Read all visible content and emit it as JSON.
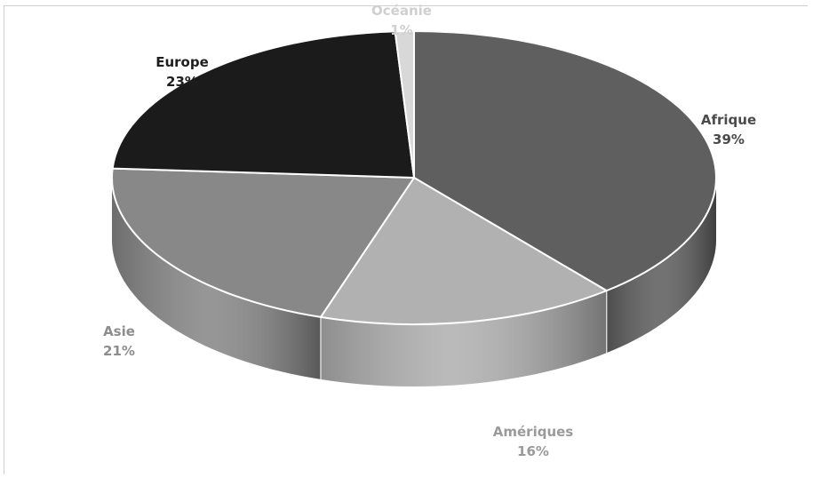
{
  "chart_data": {
    "type": "pie",
    "title": "",
    "categories": [
      "Afrique",
      "Amériques",
      "Asie",
      "Europe",
      "Océanie"
    ],
    "values": [
      39,
      16,
      21,
      23,
      1
    ],
    "value_labels": [
      "39%",
      "16%",
      "21%",
      "23%",
      "1%"
    ],
    "colors": [
      "#5f5f5f",
      "#b1b1b1",
      "#888888",
      "#1b1b1b",
      "#d8d8d8"
    ],
    "label_colors": [
      "#4a4a4a",
      "#9a9a9a",
      "#8d8d8d",
      "#1e1e1e",
      "#cfcfcf"
    ],
    "legend": "none",
    "style": "3d"
  }
}
